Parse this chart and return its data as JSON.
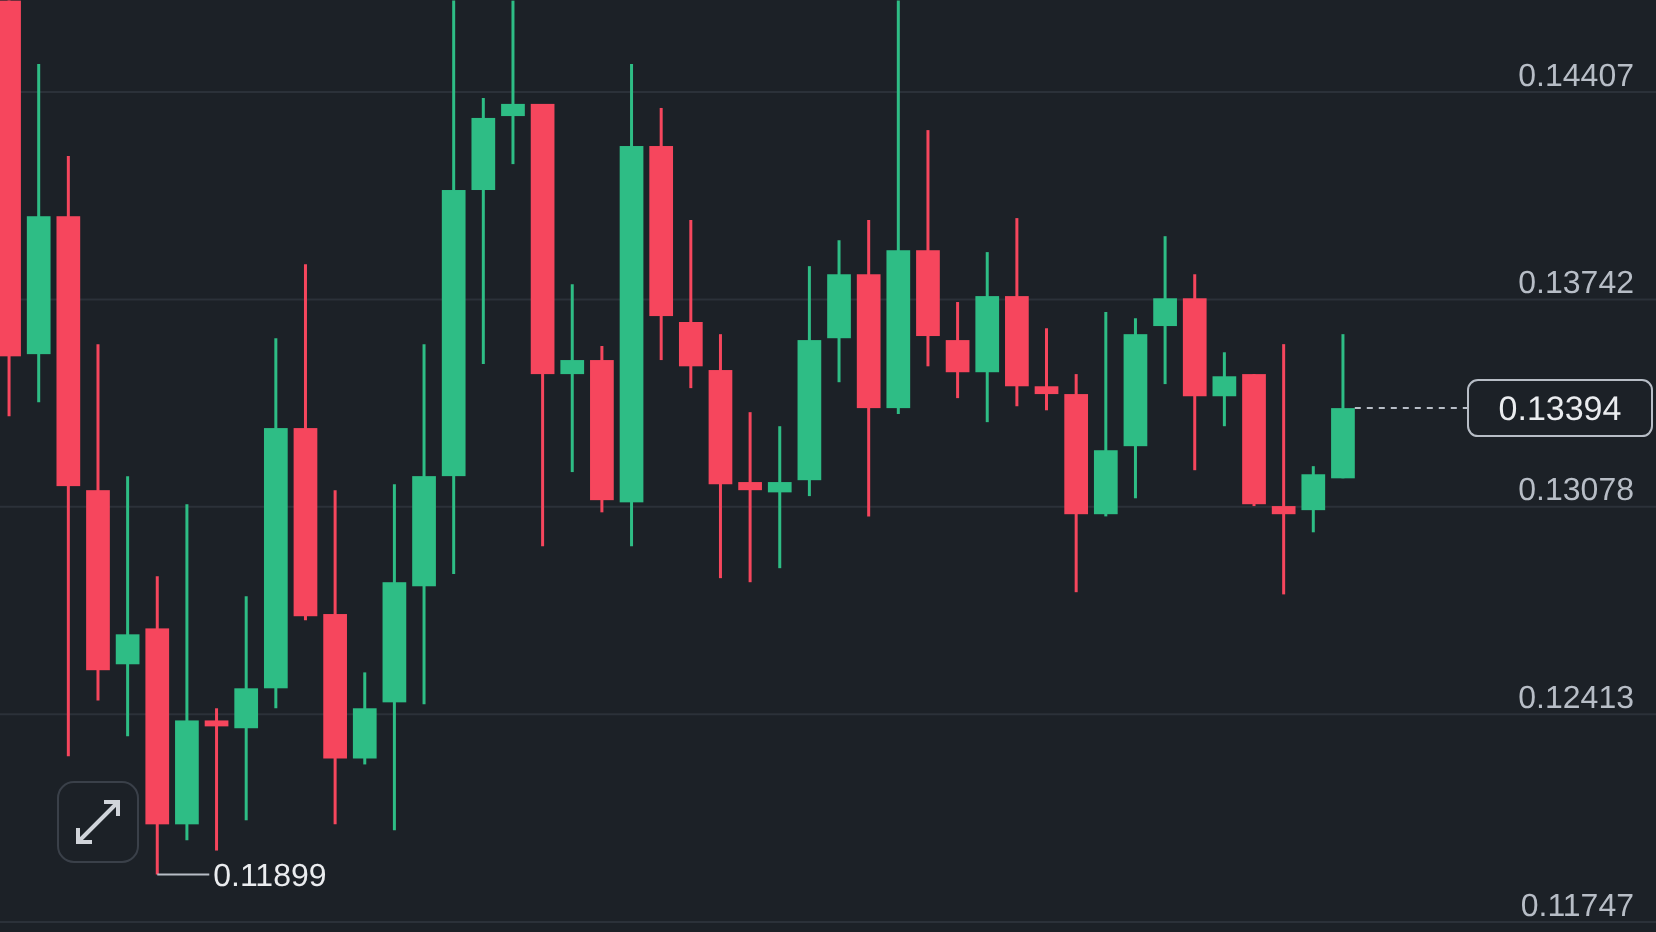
{
  "chart_data": {
    "type": "candlestick",
    "categories": [
      null,
      null,
      null,
      null,
      null,
      null,
      null,
      null,
      null,
      null,
      null,
      null,
      null,
      null,
      null,
      null,
      null,
      null,
      null,
      null,
      null,
      null,
      null,
      null,
      null,
      null,
      null,
      null,
      null,
      null,
      null,
      null,
      null,
      null,
      null,
      null,
      null,
      null,
      null,
      null,
      null,
      null,
      null,
      null,
      null,
      null
    ],
    "ohlc": [
      [
        0.147,
        0.147,
        0.13368,
        0.1356
      ],
      [
        0.13567,
        0.14497,
        0.13413,
        0.14009
      ],
      [
        0.14009,
        0.14202,
        0.12278,
        0.13144
      ],
      [
        0.13131,
        0.13599,
        0.12457,
        0.12554
      ],
      [
        0.12573,
        0.13176,
        0.12342,
        0.12669
      ],
      [
        0.12688,
        0.12855,
        0.11899,
        0.1206
      ],
      [
        0.1206,
        0.13086,
        0.12009,
        0.12393
      ],
      [
        0.12393,
        0.12432,
        0.11976,
        0.12374
      ],
      [
        0.12368,
        0.12791,
        0.12073,
        0.12496
      ],
      [
        0.12496,
        0.13618,
        0.12432,
        0.1333
      ],
      [
        0.1333,
        0.13855,
        0.12714,
        0.12727
      ],
      [
        0.12734,
        0.13131,
        0.1206,
        0.12271
      ],
      [
        0.12271,
        0.12547,
        0.12252,
        0.12432
      ],
      [
        0.12451,
        0.1315,
        0.12041,
        0.12836
      ],
      [
        0.12823,
        0.13599,
        0.12445,
        0.13176
      ],
      [
        0.13176,
        0.147,
        0.12862,
        0.14093
      ],
      [
        0.14093,
        0.14388,
        0.13535,
        0.14324
      ],
      [
        0.1433,
        0.147,
        0.14176,
        0.14369
      ],
      [
        0.14369,
        0.14369,
        0.12951,
        0.13503
      ],
      [
        0.13503,
        0.13791,
        0.13189,
        0.13548
      ],
      [
        0.13548,
        0.13593,
        0.1306,
        0.13099
      ],
      [
        0.13092,
        0.14497,
        0.12951,
        0.14234
      ],
      [
        0.14234,
        0.14356,
        0.13548,
        0.13689
      ],
      [
        0.1367,
        0.13997,
        0.13458,
        0.13528
      ],
      [
        0.13516,
        0.13631,
        0.12849,
        0.1315
      ],
      [
        0.13157,
        0.13381,
        0.12836,
        0.13131
      ],
      [
        0.13124,
        0.13336,
        0.12881,
        0.13157
      ],
      [
        0.13163,
        0.13849,
        0.13112,
        0.13612
      ],
      [
        0.13618,
        0.13932,
        0.13477,
        0.13823
      ],
      [
        0.13823,
        0.13997,
        0.13047,
        0.13394
      ],
      [
        0.13394,
        0.147,
        0.13375,
        0.139
      ],
      [
        0.139,
        0.14285,
        0.13528,
        0.13625
      ],
      [
        0.13612,
        0.13734,
        0.13426,
        0.13509
      ],
      [
        0.13509,
        0.13894,
        0.13349,
        0.13753
      ],
      [
        0.13753,
        0.14003,
        0.134,
        0.13464
      ],
      [
        0.13464,
        0.1365,
        0.13387,
        0.13439
      ],
      [
        0.13439,
        0.13503,
        0.12804,
        0.13054
      ],
      [
        0.13054,
        0.13702,
        0.13047,
        0.13259
      ],
      [
        0.13272,
        0.13682,
        0.13105,
        0.13631
      ],
      [
        0.13657,
        0.13945,
        0.13471,
        0.13746
      ],
      [
        0.13746,
        0.13823,
        0.13195,
        0.13432
      ],
      [
        0.13432,
        0.13573,
        0.13336,
        0.13496
      ],
      [
        0.13503,
        0.13503,
        0.1308,
        0.13086
      ],
      [
        0.1308,
        0.13599,
        0.12797,
        0.13054
      ],
      [
        0.13067,
        0.13208,
        0.12996,
        0.13182
      ],
      [
        0.13169,
        0.13631,
        0.13169,
        0.13394
      ]
    ],
    "colors": [
      "#f6465d",
      "#2ebd85",
      "#f6465d",
      "#f6465d",
      "#2ebd85",
      "#f6465d",
      "#2ebd85",
      "#f6465d",
      "#2ebd85",
      "#2ebd85",
      "#f6465d",
      "#f6465d",
      "#2ebd85",
      "#2ebd85",
      "#2ebd85",
      "#2ebd85",
      "#2ebd85",
      "#2ebd85",
      "#f6465d",
      "#2ebd85",
      "#f6465d",
      "#2ebd85",
      "#f6465d",
      "#f6465d",
      "#f6465d",
      "#f6465d",
      "#2ebd85",
      "#2ebd85",
      "#2ebd85",
      "#f6465d",
      "#2ebd85",
      "#f6465d",
      "#f6465d",
      "#2ebd85",
      "#f6465d",
      "#f6465d",
      "#f6465d",
      "#2ebd85",
      "#2ebd85",
      "#2ebd85",
      "#f6465d",
      "#2ebd85",
      "#f6465d",
      "#f6465d",
      "#2ebd85",
      "#2ebd85"
    ],
    "ylim": [
      0.11747,
      0.14702
    ],
    "yticks": [
      0.11747,
      0.12413,
      0.13078,
      0.13742,
      0.14407
    ],
    "grid": "y",
    "ref_lines": [
      {
        "axis": "y",
        "value": 0.13394,
        "label": "0.13394",
        "line_style": "dashed",
        "color": "#b7bdc6"
      }
    ],
    "annotations": [
      "0.11899"
    ]
  }
}
